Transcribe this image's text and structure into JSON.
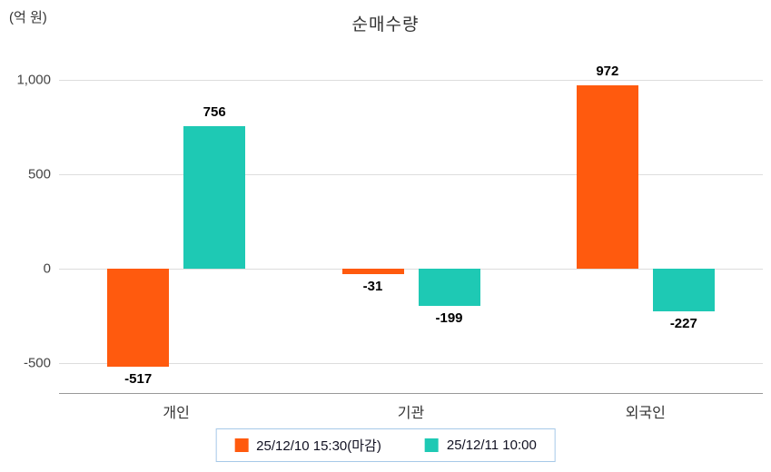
{
  "title": "순매수량",
  "unit_label": "(억 원)",
  "chart_data": {
    "type": "bar",
    "title": "순매수량",
    "ylabel": "(억 원)",
    "categories": [
      "개인",
      "기관",
      "외국인"
    ],
    "series": [
      {
        "name": "25/12/10 15:30(마감)",
        "color": "#FF5A0E",
        "values": [
          -517,
          -31,
          972
        ]
      },
      {
        "name": "25/12/11 10:00",
        "color": "#1EC9B4",
        "values": [
          756,
          -199,
          -227
        ]
      }
    ],
    "yticks": [
      1000,
      500,
      0,
      -500
    ],
    "ylim": [
      -660,
      1120
    ],
    "grid": true,
    "legend_position": "bottom"
  }
}
